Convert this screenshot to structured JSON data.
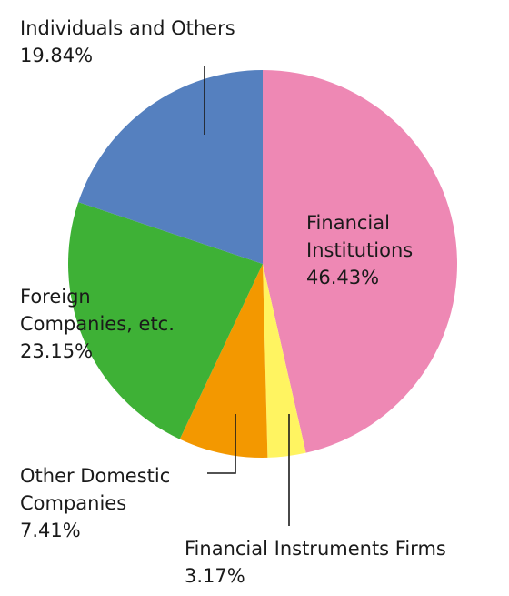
{
  "chart_data": {
    "type": "pie",
    "slices": [
      {
        "label_lines": [
          "Financial",
          "Institutions"
        ],
        "value_text": "46.43%",
        "value": 46.43,
        "color": "#EE88B4"
      },
      {
        "label_lines": [
          "Financial Instruments Firms"
        ],
        "value_text": "3.17%",
        "value": 3.17,
        "color": "#FFF461"
      },
      {
        "label_lines": [
          "Other Domestic",
          "Companies"
        ],
        "value_text": "7.41%",
        "value": 7.41,
        "color": "#F39800"
      },
      {
        "label_lines": [
          "Foreign",
          "Companies, etc."
        ],
        "value_text": "23.15%",
        "value": 23.15,
        "color": "#3EB136"
      },
      {
        "label_lines": [
          "Individuals and Others"
        ],
        "value_text": "19.84%",
        "value": 19.84,
        "color": "#5580BF"
      }
    ],
    "start": "12 o'clock",
    "direction": "clockwise",
    "legend": "none"
  }
}
